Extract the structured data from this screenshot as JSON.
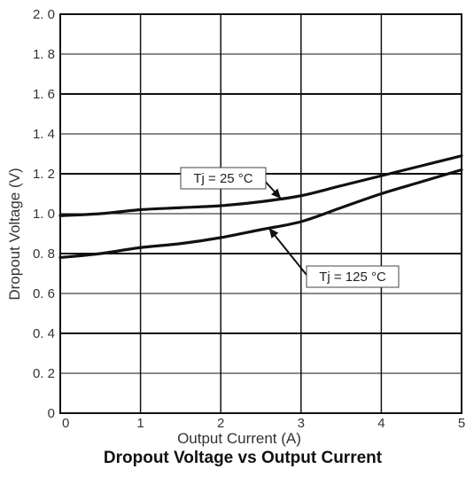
{
  "chart_data": {
    "type": "line",
    "title": "Dropout Voltage vs Output Current",
    "xlabel": "Output Current (A)",
    "ylabel": "Dropout Voltage (V)",
    "xlim": [
      0,
      5
    ],
    "ylim": [
      0,
      2.0
    ],
    "x_ticks": [
      "0",
      "1",
      "2",
      "3",
      "4",
      "5"
    ],
    "y_ticks": [
      "0",
      "0. 2",
      "0. 4",
      "0. 6",
      "0. 8",
      "1. 0",
      "1. 2",
      "1. 4",
      "1. 6",
      "1. 8",
      "2. 0"
    ],
    "grid": true,
    "series": [
      {
        "name": "Tj = 25 °C",
        "x": [
          0,
          0.5,
          1,
          1.5,
          2,
          2.5,
          3,
          3.5,
          4,
          4.5,
          5
        ],
        "y": [
          0.99,
          1.0,
          1.02,
          1.03,
          1.04,
          1.06,
          1.09,
          1.14,
          1.19,
          1.24,
          1.29
        ]
      },
      {
        "name": "Tj = 125 °C",
        "x": [
          0,
          0.5,
          1,
          1.5,
          2,
          2.5,
          3,
          3.5,
          4,
          4.5,
          5
        ],
        "y": [
          0.78,
          0.8,
          0.83,
          0.85,
          0.88,
          0.92,
          0.96,
          1.03,
          1.1,
          1.16,
          1.22
        ]
      }
    ],
    "annotations": [
      {
        "text": "Tj = 25 °C",
        "series": 0,
        "point_x": 2.75
      },
      {
        "text": "Tj = 125 °C",
        "series": 1,
        "point_x": 2.6
      }
    ],
    "colors": {
      "line": "#111111",
      "grid": "#111111",
      "background": "#ffffff"
    }
  }
}
